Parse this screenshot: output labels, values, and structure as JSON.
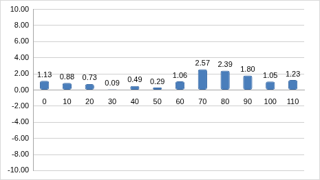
{
  "chart_data": {
    "type": "bar",
    "categories": [
      "0",
      "10",
      "20",
      "30",
      "40",
      "50",
      "60",
      "70",
      "80",
      "90",
      "100",
      "110"
    ],
    "values": [
      1.13,
      0.88,
      0.73,
      0.09,
      0.49,
      0.29,
      1.06,
      2.57,
      2.39,
      1.8,
      1.05,
      1.23
    ],
    "value_labels": [
      "1.13",
      "0.88",
      "0.73",
      "0.09",
      "0.49",
      "0.29",
      "1.06",
      "2.57",
      "2.39",
      "1.80",
      "1.05",
      "1.23"
    ],
    "color": "#4a7ebb",
    "ylim": [
      -10,
      10
    ],
    "yticks": [
      {
        "value": -10,
        "label": "-10.00"
      },
      {
        "value": -8,
        "label": "-8.00"
      },
      {
        "value": -6,
        "label": "-6.00"
      },
      {
        "value": -4,
        "label": "-4.00"
      },
      {
        "value": -2,
        "label": "-2.00"
      },
      {
        "value": 0,
        "label": "0.00"
      },
      {
        "value": 2,
        "label": "2.00"
      },
      {
        "value": 4,
        "label": "4.00"
      },
      {
        "value": 6,
        "label": "6.00"
      },
      {
        "value": 8,
        "label": "8.00"
      },
      {
        "value": 10,
        "label": "10.00"
      }
    ],
    "grid": true,
    "data_labels": true
  }
}
